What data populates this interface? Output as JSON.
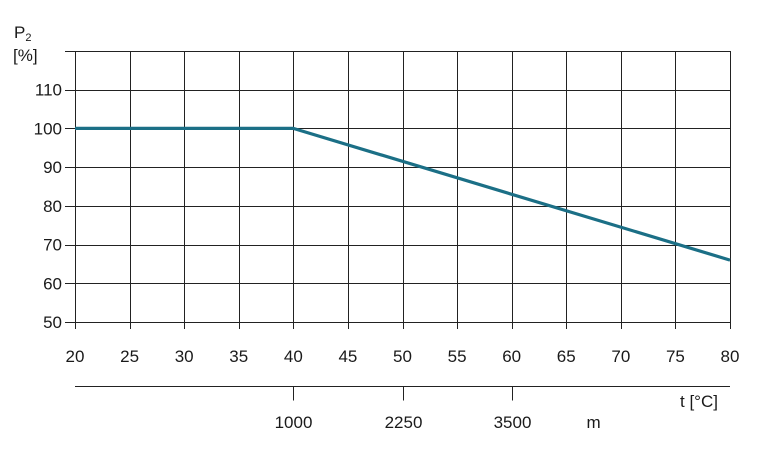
{
  "chart_data": {
    "type": "line",
    "ylabel_main": "P",
    "ylabel_sub": "2",
    "yunit": "[%]",
    "xlabel": "t [°C]",
    "x_ticks": [
      20,
      25,
      30,
      35,
      40,
      45,
      50,
      55,
      60,
      65,
      70,
      75,
      80
    ],
    "y_ticks": [
      50,
      60,
      70,
      80,
      90,
      100,
      110
    ],
    "xlim": [
      20,
      80
    ],
    "ylim": [
      50,
      120
    ],
    "grid": true,
    "series": [
      {
        "color": "#1b6f86",
        "x": [
          20,
          40,
          80
        ],
        "y": [
          100,
          100,
          66
        ]
      }
    ],
    "altitude_axis": {
      "unit": "m",
      "ticks": [
        {
          "label": "1000",
          "at_temp": 40
        },
        {
          "label": "2250",
          "at_temp": 50
        },
        {
          "label": "3500",
          "at_temp": 60
        }
      ],
      "unit_at_temp": 67.5
    }
  }
}
